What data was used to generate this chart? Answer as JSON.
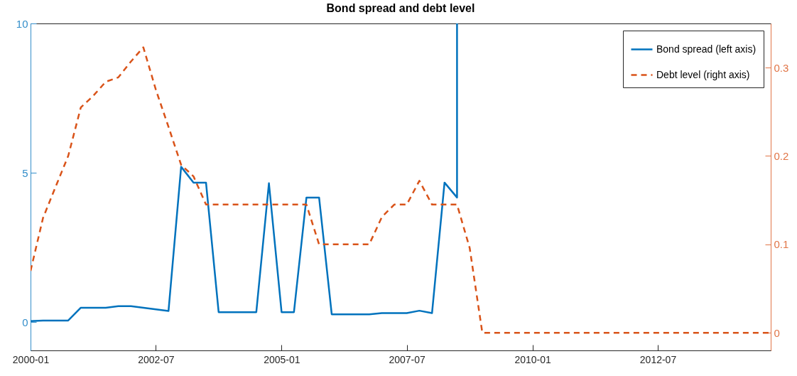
{
  "chart_data": {
    "type": "line",
    "title": "Bond spread and debt level",
    "xlim": [
      "2000-01",
      "2014-10"
    ],
    "xticks": [
      "2000-01",
      "2002-07",
      "2005-01",
      "2007-07",
      "2010-01",
      "2012-07"
    ],
    "ylim": [
      -0.95,
      10
    ],
    "yticks": [
      0,
      5,
      10
    ],
    "y2lim": [
      -0.02,
      0.35
    ],
    "y2ticks": [
      0,
      0.1,
      0.2,
      0.3
    ],
    "legend": "top right",
    "series": [
      {
        "name": "Bond spread (left axis)",
        "color": "#0072bd",
        "line_style": "solid",
        "x": [
          "2000-01",
          "2000-04",
          "2000-10",
          "2001-01",
          "2001-07",
          "2001-10",
          "2002-01",
          "2002-10",
          "2003-01",
          "2003-04",
          "2003-07",
          "2003-10",
          "2004-07",
          "2004-10",
          "2005-01",
          "2005-04",
          "2005-07",
          "2005-10",
          "2006-01",
          "2006-10",
          "2007-01",
          "2007-07",
          "2007-10",
          "2008-01",
          "2008-04",
          "2008-07",
          "2008-07"
        ],
        "values": [
          0.03,
          0.05,
          0.05,
          0.48,
          0.48,
          0.53,
          0.53,
          0.37,
          5.2,
          4.67,
          4.67,
          0.33,
          0.33,
          4.65,
          0.33,
          0.33,
          4.17,
          4.17,
          0.26,
          0.26,
          0.3,
          0.3,
          0.38,
          0.3,
          4.67,
          4.17,
          10
        ]
      },
      {
        "name": "Debt level (right axis)",
        "color": "#d95319",
        "line_style": "dashed",
        "axis": "y2",
        "x": [
          "2000-01",
          "2000-04",
          "2000-07",
          "2000-10",
          "2001-01",
          "2001-04",
          "2001-07",
          "2001-10",
          "2002-01",
          "2002-04",
          "2002-07",
          "2002-10",
          "2003-01",
          "2003-04",
          "2003-07",
          "2005-07",
          "2005-10",
          "2006-10",
          "2007-01",
          "2007-04",
          "2007-07",
          "2007-10",
          "2008-01",
          "2008-07",
          "2008-10",
          "2009-01",
          "2014-10"
        ],
        "values": [
          0.07,
          0.13,
          0.165,
          0.2,
          0.255,
          0.268,
          0.284,
          0.289,
          0.307,
          0.323,
          0.275,
          0.233,
          0.19,
          0.177,
          0.145,
          0.145,
          0.1,
          0.1,
          0.131,
          0.145,
          0.145,
          0.172,
          0.145,
          0.145,
          0.096,
          0,
          0
        ]
      }
    ]
  }
}
